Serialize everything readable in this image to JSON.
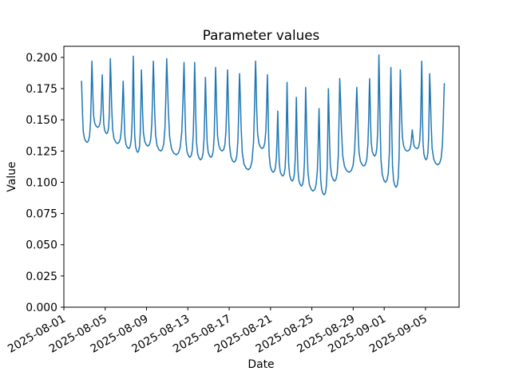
{
  "chart_data": {
    "type": "line",
    "title": "Parameter values",
    "xlabel": "Date",
    "ylabel": "Value",
    "background": "#ffffff",
    "axis_color": "#000000",
    "grid": false,
    "legend": false,
    "x_axis": {
      "tick_labels": [
        "2025-08-01",
        "2025-08-05",
        "2025-08-09",
        "2025-08-13",
        "2025-08-17",
        "2025-08-21",
        "2025-08-25",
        "2025-08-29",
        "2025-09-01",
        "2025-09-05"
      ],
      "tick_day_offsets": [
        0,
        4,
        8,
        12,
        16,
        20,
        24,
        28,
        31,
        35
      ],
      "xlim_days": [
        0,
        38.25
      ],
      "tick_rotation_deg": 30
    },
    "y_axis": {
      "tick_labels": [
        "0.000",
        "0.025",
        "0.050",
        "0.075",
        "0.100",
        "0.125",
        "0.150",
        "0.175",
        "0.200"
      ],
      "tick_values": [
        0.0,
        0.025,
        0.05,
        0.075,
        0.1,
        0.125,
        0.15,
        0.175,
        0.2
      ],
      "ylim": [
        0,
        0.2089
      ]
    },
    "series": [
      {
        "name": "parameter-values",
        "color": "#1f77b4",
        "line_width": 1.5,
        "start": {
          "day": 1.71,
          "value": 0.181
        },
        "daily_cycles": [
          {
            "day": 2.71,
            "peak": 0.197,
            "trough_before": 0.132
          },
          {
            "day": 3.72,
            "peak": 0.186,
            "trough_before": 0.144
          },
          {
            "day": 4.5,
            "peak": 0.199,
            "trough_before": 0.139
          },
          {
            "day": 5.74,
            "peak": 0.181,
            "trough_before": 0.131
          },
          {
            "day": 6.72,
            "peak": 0.201,
            "trough_before": 0.127
          },
          {
            "day": 7.5,
            "peak": 0.19,
            "trough_before": 0.124
          },
          {
            "day": 8.66,
            "peak": 0.197,
            "trough_before": 0.129
          },
          {
            "day": 9.95,
            "peak": 0.199,
            "trough_before": 0.125
          },
          {
            "day": 11.63,
            "peak": 0.196,
            "trough_before": 0.122
          },
          {
            "day": 12.66,
            "peak": 0.196,
            "trough_before": 0.12
          },
          {
            "day": 13.7,
            "peak": 0.184,
            "trough_before": 0.118
          },
          {
            "day": 14.68,
            "peak": 0.192,
            "trough_before": 0.12
          },
          {
            "day": 15.84,
            "peak": 0.19,
            "trough_before": 0.125
          },
          {
            "day": 17.0,
            "peak": 0.187,
            "trough_before": 0.116
          },
          {
            "day": 18.55,
            "peak": 0.197,
            "trough_before": 0.11
          },
          {
            "day": 19.7,
            "peak": 0.186,
            "trough_before": 0.127
          },
          {
            "day": 20.7,
            "peak": 0.157,
            "trough_before": 0.108
          },
          {
            "day": 21.6,
            "peak": 0.18,
            "trough_before": 0.105
          },
          {
            "day": 22.5,
            "peak": 0.168,
            "trough_before": 0.101
          },
          {
            "day": 23.4,
            "peak": 0.176,
            "trough_before": 0.097
          },
          {
            "day": 24.7,
            "peak": 0.159,
            "trough_before": 0.093
          },
          {
            "day": 25.6,
            "peak": 0.175,
            "trough_before": 0.09
          },
          {
            "day": 26.7,
            "peak": 0.183,
            "trough_before": 0.101
          },
          {
            "day": 28.35,
            "peak": 0.176,
            "trough_before": 0.108
          },
          {
            "day": 29.59,
            "peak": 0.183,
            "trough_before": 0.113
          },
          {
            "day": 30.49,
            "peak": 0.202,
            "trough_before": 0.121
          },
          {
            "day": 31.65,
            "peak": 0.192,
            "trough_before": 0.1
          },
          {
            "day": 32.56,
            "peak": 0.19,
            "trough_before": 0.096
          },
          {
            "day": 33.72,
            "peak": 0.142,
            "trough_before": 0.125
          },
          {
            "day": 34.63,
            "peak": 0.197,
            "trough_before": 0.127
          },
          {
            "day": 35.4,
            "peak": 0.187,
            "trough_before": 0.118
          },
          {
            "day": 36.82,
            "peak": 0.179,
            "trough_before": 0.114
          }
        ],
        "cycle_shape": {
          "descent": [
            [
              0.04,
              0.8
            ],
            [
              0.1,
              0.45
            ],
            [
              0.17,
              0.18
            ],
            [
              0.28,
              0.06
            ],
            [
              0.42,
              0.015
            ],
            [
              0.55,
              0.0
            ]
          ],
          "ascent": [
            [
              0.68,
              0.02
            ],
            [
              0.78,
              0.08
            ],
            [
              0.87,
              0.25
            ],
            [
              0.93,
              0.55
            ],
            [
              0.97,
              0.82
            ]
          ]
        }
      }
    ]
  }
}
